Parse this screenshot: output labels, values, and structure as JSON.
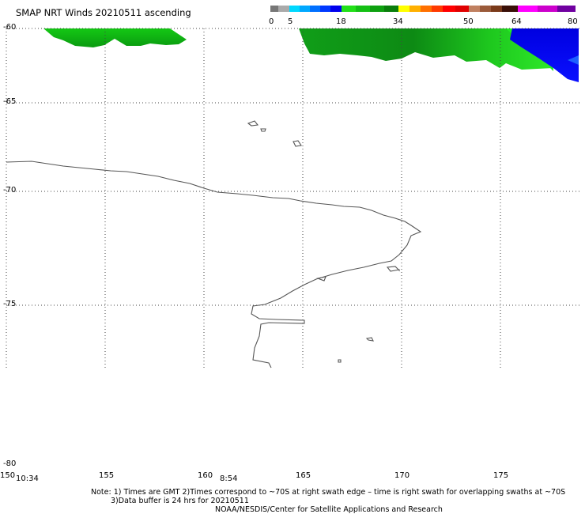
{
  "title": "SMAP NRT Winds 20210511 ascending",
  "colorbar": {
    "tick_labels": [
      "0",
      "5",
      "18",
      "34",
      "50",
      "64",
      "80"
    ],
    "segments": [
      {
        "from": 0,
        "to": 5,
        "color": "#555555"
      },
      {
        "from": 5,
        "to": 18,
        "color": "#00bfff"
      },
      {
        "from": 18,
        "to": 34,
        "color": "#00cc00"
      },
      {
        "from": 34,
        "to": 50,
        "color": "#ff6600"
      },
      {
        "from": 50,
        "to": 64,
        "color": "#8b4513"
      },
      {
        "from": 64,
        "to": 80,
        "color": "#b000c0"
      }
    ]
  },
  "axes": {
    "lat_labels": [
      "-60",
      "-65",
      "-70",
      "-75",
      "-80"
    ],
    "lon_labels": [
      "150",
      "155",
      "160",
      "165",
      "170",
      "175"
    ]
  },
  "time_labels": [
    "10:34",
    "8:54"
  ],
  "notes": [
    "Note: 1) Times are GMT 2)Times correspond to ~70S at right swath edge – time is right swath for overlapping swaths at ~70S",
    "3)Data buffer is 24 hrs for 20210511",
    "NOAA/NESDIS/Center for Satellite Applications and Research"
  ]
}
